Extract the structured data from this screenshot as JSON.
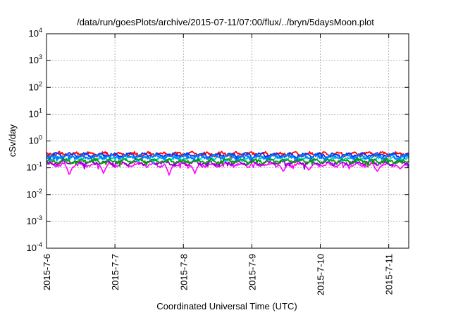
{
  "chart_data": {
    "type": "line",
    "title": "/data/run/goesPlots/archive/2015-07-11/07:00/flux/../bryn/5daysMoon.plot",
    "xlabel": "Coordinated Universal Time (UTC)",
    "ylabel": "cSv/day",
    "scale_y": "log",
    "ylim": [
      0.0001,
      10000
    ],
    "xlim": [
      "2015-07-06 00:00",
      "2015-07-11 07:00"
    ],
    "y_ticks": [
      {
        "base": "10",
        "exp": "-4"
      },
      {
        "base": "10",
        "exp": "-3"
      },
      {
        "base": "10",
        "exp": "-2"
      },
      {
        "base": "10",
        "exp": "-1"
      },
      {
        "base": "10",
        "exp": "0"
      },
      {
        "base": "10",
        "exp": "1"
      },
      {
        "base": "10",
        "exp": "2"
      },
      {
        "base": "10",
        "exp": "3"
      },
      {
        "base": "10",
        "exp": "4"
      }
    ],
    "x_ticks": [
      "2015-7-6",
      "2015-7-7",
      "2015-7-8",
      "2015-7-9",
      "2015-7-10",
      "2015-7-11"
    ],
    "grid": true,
    "series": [
      {
        "color": "#ff00ff",
        "level": 0.13,
        "dips": [
          [
            "2015-07-06 08:00",
            0.05
          ],
          [
            "2015-07-06 20:00",
            0.06
          ],
          [
            "2015-07-07 19:00",
            0.05
          ],
          [
            "2015-07-08 04:00",
            0.06
          ],
          [
            "2015-07-09 11:00",
            0.07
          ],
          [
            "2015-07-09 20:00",
            0.08
          ],
          [
            "2015-07-10 20:00",
            0.07
          ],
          [
            "2015-07-11 04:00",
            0.09
          ]
        ]
      },
      {
        "color": "#9400d3",
        "level": 0.155,
        "dips": []
      },
      {
        "color": "#ff0000",
        "level": 0.33,
        "dips": []
      },
      {
        "color": "#00cccc",
        "level": 0.22,
        "dips": []
      },
      {
        "color": "#0033ff",
        "level": 0.3,
        "dips": []
      },
      {
        "color": "#0080ff",
        "level": 0.26,
        "dips": []
      },
      {
        "color": "#00a000",
        "level": 0.18,
        "dips": []
      }
    ]
  }
}
